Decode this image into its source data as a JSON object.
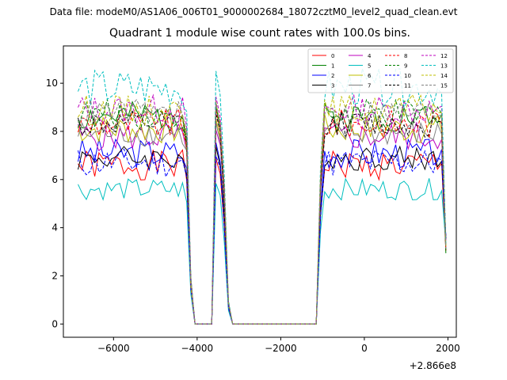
{
  "suptitle": "Data file: modeM0/AS1A06_006T01_9000002684_18072cztM0_level2_quad_clean.evt",
  "chart_data": {
    "type": "line",
    "title": "Quadrant 1 module wise count rates with 100.0s bins.",
    "xlabel": "",
    "ylabel": "",
    "x_offset_label": "+2.866e8",
    "xlim": [
      -7200,
      2200
    ],
    "ylim": [
      -0.55,
      11.55
    ],
    "xticks": [
      -6000,
      -4000,
      -2000,
      0,
      2000
    ],
    "xtick_labels": [
      "−6000",
      "−4000",
      "−2000",
      "0",
      "2000"
    ],
    "yticks": [
      0,
      2,
      4,
      6,
      8,
      10
    ],
    "ytick_labels": [
      "0",
      "2",
      "4",
      "6",
      "8",
      "10"
    ],
    "legend": {
      "placement": "top-right",
      "columns": 4
    },
    "grid": false,
    "segments": [
      {
        "start": -6850,
        "end": -4250
      },
      {
        "start": -4150,
        "end": -3850
      },
      {
        "start": -3650,
        "end": -3150
      },
      {
        "start": -3050,
        "end": -1150
      },
      {
        "start": -1050,
        "end": 1950
      }
    ],
    "series": [
      {
        "name": "0",
        "color": "#ff0000",
        "dash": false,
        "level": 6.6,
        "amp": 0.35,
        "seed": 1
      },
      {
        "name": "1",
        "color": "#008000",
        "dash": false,
        "level": 8.6,
        "amp": 0.35,
        "seed": 2
      },
      {
        "name": "2",
        "color": "#0000ff",
        "dash": false,
        "level": 7.1,
        "amp": 0.35,
        "seed": 3
      },
      {
        "name": "3",
        "color": "#000000",
        "dash": false,
        "level": 6.9,
        "amp": 0.3,
        "seed": 4
      },
      {
        "name": "4",
        "color": "#bf00bf",
        "dash": false,
        "level": 7.8,
        "amp": 0.35,
        "seed": 5
      },
      {
        "name": "5",
        "color": "#00bfbf",
        "dash": false,
        "level": 5.6,
        "amp": 0.25,
        "seed": 6
      },
      {
        "name": "6",
        "color": "#bfbf00",
        "dash": false,
        "level": 8.1,
        "amp": 0.35,
        "seed": 7
      },
      {
        "name": "7",
        "color": "#808080",
        "dash": false,
        "level": 7.9,
        "amp": 0.3,
        "seed": 8
      },
      {
        "name": "8",
        "color": "#ff0000",
        "dash": true,
        "level": 8.3,
        "amp": 0.35,
        "seed": 9
      },
      {
        "name": "9",
        "color": "#008000",
        "dash": true,
        "level": 8.7,
        "amp": 0.35,
        "seed": 10
      },
      {
        "name": "10",
        "color": "#0000ff",
        "dash": true,
        "level": 6.7,
        "amp": 0.35,
        "seed": 11
      },
      {
        "name": "11",
        "color": "#000000",
        "dash": true,
        "level": 8.3,
        "amp": 0.3,
        "seed": 12
      },
      {
        "name": "12",
        "color": "#bf00bf",
        "dash": true,
        "level": 8.9,
        "amp": 0.35,
        "seed": 13
      },
      {
        "name": "13",
        "color": "#00bfbf",
        "dash": true,
        "level": 9.8,
        "amp": 0.45,
        "seed": 14
      },
      {
        "name": "14",
        "color": "#bfbf00",
        "dash": true,
        "level": 8.9,
        "amp": 0.35,
        "seed": 15
      },
      {
        "name": "15",
        "color": "#808080",
        "dash": true,
        "level": 8.8,
        "amp": 0.3,
        "seed": 16
      }
    ]
  }
}
